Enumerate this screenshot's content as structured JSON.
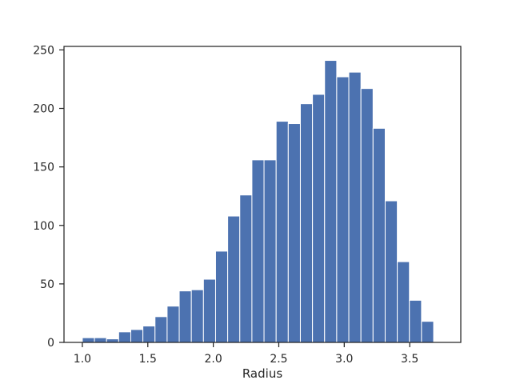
{
  "chart_data": {
    "type": "bar",
    "xlabel": "Radius",
    "ylabel": "",
    "title": "",
    "xlim": [
      0.86,
      3.89
    ],
    "ylim": [
      0,
      253
    ],
    "bin_edges": [
      1.0,
      1.0925,
      1.185,
      1.2775,
      1.37,
      1.4625,
      1.555,
      1.6475,
      1.74,
      1.8325,
      1.925,
      2.0175,
      2.11,
      2.2025,
      2.295,
      2.3875,
      2.48,
      2.5725,
      2.665,
      2.7575,
      2.85,
      2.9425,
      3.035,
      3.1275,
      3.22,
      3.3125,
      3.405,
      3.4975,
      3.59,
      3.6825,
      3.775
    ],
    "values": [
      4,
      4,
      3,
      9,
      11,
      14,
      22,
      31,
      44,
      45,
      54,
      78,
      108,
      126,
      156,
      156,
      189,
      187,
      204,
      212,
      241,
      227,
      231,
      217,
      183,
      121,
      69,
      36,
      18,
      0
    ],
    "x_ticks": [
      1.0,
      1.5,
      2.0,
      2.5,
      3.0,
      3.5
    ],
    "x_tick_labels": [
      "1.0",
      "1.5",
      "2.0",
      "2.5",
      "3.0",
      "3.5"
    ],
    "y_ticks": [
      0,
      50,
      100,
      150,
      200,
      250
    ],
    "y_tick_labels": [
      "0",
      "50",
      "100",
      "150",
      "200",
      "250"
    ],
    "bar_color": "#4c72b0",
    "edge_color": "#ffffff",
    "grid": false
  }
}
